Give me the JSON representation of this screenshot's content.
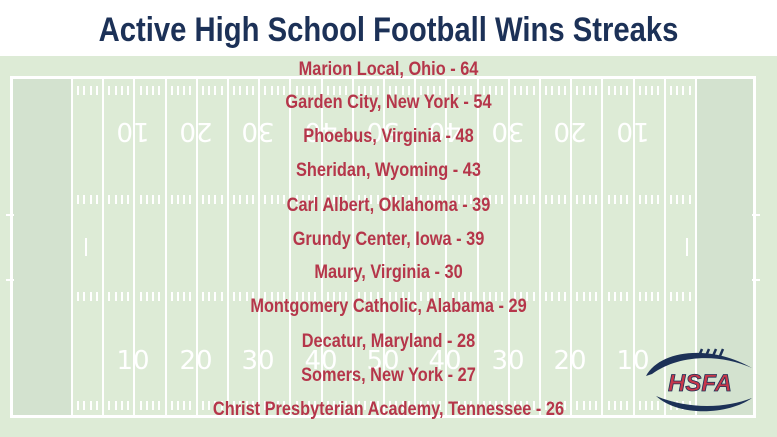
{
  "title": "Active High School Football Wins Streaks",
  "colors": {
    "title": "#1c3157",
    "entries": "#b5364a",
    "field": "#ddebd6",
    "endzone": "#d3e2cf",
    "lines": "#ffffff",
    "logo_navy": "#1c3157",
    "logo_red": "#c8374a"
  },
  "streaks": [
    {
      "school": "Marion Local, Ohio",
      "wins": 64,
      "label": "Marion Local, Ohio - 64"
    },
    {
      "school": "Garden City, New York",
      "wins": 54,
      "label": "Garden City, New York - 54"
    },
    {
      "school": "Phoebus, Virginia",
      "wins": 48,
      "label": "Phoebus, Virginia - 48"
    },
    {
      "school": "Sheridan, Wyoming",
      "wins": 43,
      "label": "Sheridan, Wyoming - 43"
    },
    {
      "school": "Carl Albert, Oklahoma",
      "wins": 39,
      "label": "Carl Albert, Oklahoma - 39"
    },
    {
      "school": "Grundy Center, Iowa",
      "wins": 39,
      "label": "Grundy Center, Iowa - 39"
    },
    {
      "school": "Maury, Virginia",
      "wins": 30,
      "label": "Maury, Virginia - 30"
    },
    {
      "school": "Montgomery Catholic, Alabama",
      "wins": 29,
      "label": "Montgomery Catholic, Alabama - 29"
    },
    {
      "school": "Decatur, Maryland",
      "wins": 28,
      "label": "Decatur, Maryland - 28"
    },
    {
      "school": "Somers, New York",
      "wins": 27,
      "label": "Somers, New York - 27"
    },
    {
      "school": "Christ Presbyterian Academy, Tennessee",
      "wins": 26,
      "label": "Christ Presbyterian Academy, Tennessee - 26"
    }
  ],
  "field": {
    "yard_numbers_top": [
      "10",
      "20",
      "30",
      "40",
      "50",
      "40",
      "30",
      "20",
      "10"
    ],
    "yard_numbers_bottom": [
      "10",
      "20",
      "30",
      "40",
      "50",
      "40",
      "30",
      "20",
      "10"
    ]
  },
  "logo": {
    "text": "HSFA",
    "icon": "football-icon"
  }
}
